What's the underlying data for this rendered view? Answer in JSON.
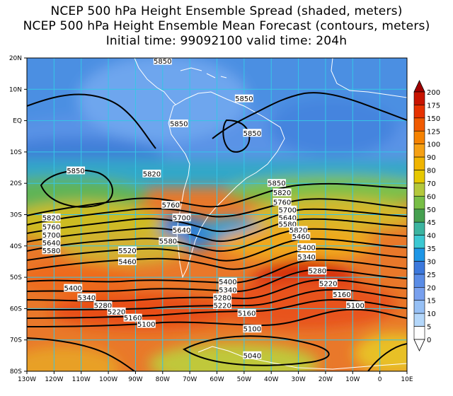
{
  "titles": {
    "line1": "NCEP 500 hPa Height Ensemble Spread (shaded, meters)",
    "line2": "NCEP 500 hPa Height Ensemble Mean Forecast (contours, meters)",
    "line3": "Initial time: 99092100   valid time: 204h"
  },
  "map": {
    "lon_range": [
      -130,
      10
    ],
    "lat_range": [
      -80,
      20
    ],
    "lat_ticks": [
      "20N",
      "10N",
      "EQ",
      "10S",
      "20S",
      "30S",
      "40S",
      "50S",
      "60S",
      "70S",
      "80S"
    ],
    "lon_ticks": [
      "130W",
      "120W",
      "110W",
      "100W",
      "90W",
      "80W",
      "70W",
      "60W",
      "50W",
      "40W",
      "30W",
      "20W",
      "10W",
      "0",
      "10E"
    ],
    "grid": true,
    "contour_labels": [
      {
        "text": "5850",
        "lon": -80,
        "lat": 19
      },
      {
        "text": "5850",
        "lon": -50,
        "lat": 7
      },
      {
        "text": "5850",
        "lon": -74,
        "lat": -1
      },
      {
        "text": "5850",
        "lon": -47,
        "lat": -4
      },
      {
        "text": "5850",
        "lon": -112,
        "lat": -16
      },
      {
        "text": "5820",
        "lon": -84,
        "lat": -17
      },
      {
        "text": "5850",
        "lon": -38,
        "lat": -20
      },
      {
        "text": "5820",
        "lon": -36,
        "lat": -23
      },
      {
        "text": "5760",
        "lon": -36,
        "lat": -26
      },
      {
        "text": "5700",
        "lon": -34,
        "lat": -28.5
      },
      {
        "text": "5640",
        "lon": -34,
        "lat": -31
      },
      {
        "text": "5580",
        "lon": -34,
        "lat": -33
      },
      {
        "text": "5760",
        "lon": -77,
        "lat": -27
      },
      {
        "text": "5700",
        "lon": -73,
        "lat": -31
      },
      {
        "text": "5640",
        "lon": -73,
        "lat": -35
      },
      {
        "text": "5580",
        "lon": -78,
        "lat": -38.5
      },
      {
        "text": "5820",
        "lon": -30,
        "lat": -35
      },
      {
        "text": "5460",
        "lon": -29,
        "lat": -37
      },
      {
        "text": "5400",
        "lon": -27,
        "lat": -40.5
      },
      {
        "text": "5340",
        "lon": -27,
        "lat": -43.5
      },
      {
        "text": "5820",
        "lon": -121,
        "lat": -31
      },
      {
        "text": "5760",
        "lon": -121,
        "lat": -34
      },
      {
        "text": "5700",
        "lon": -121,
        "lat": -36.5
      },
      {
        "text": "5640",
        "lon": -121,
        "lat": -39
      },
      {
        "text": "5580",
        "lon": -121,
        "lat": -41.5
      },
      {
        "text": "5520",
        "lon": -93,
        "lat": -41.5
      },
      {
        "text": "5460",
        "lon": -93,
        "lat": -45
      },
      {
        "text": "5280",
        "lon": -23,
        "lat": -48
      },
      {
        "text": "5220",
        "lon": -19,
        "lat": -52
      },
      {
        "text": "5160",
        "lon": -14,
        "lat": -55.5
      },
      {
        "text": "5100",
        "lon": -9,
        "lat": -59
      },
      {
        "text": "5400",
        "lon": -113,
        "lat": -53.5
      },
      {
        "text": "5340",
        "lon": -108,
        "lat": -56.5
      },
      {
        "text": "5280",
        "lon": -102,
        "lat": -59
      },
      {
        "text": "5220",
        "lon": -97,
        "lat": -61
      },
      {
        "text": "5160",
        "lon": -91,
        "lat": -63
      },
      {
        "text": "5100",
        "lon": -86,
        "lat": -65
      },
      {
        "text": "5400",
        "lon": -56,
        "lat": -51.5
      },
      {
        "text": "5340",
        "lon": -56,
        "lat": -54
      },
      {
        "text": "5280",
        "lon": -58,
        "lat": -56.5
      },
      {
        "text": "5220",
        "lon": -58,
        "lat": -59
      },
      {
        "text": "5160",
        "lon": -49,
        "lat": -61.5
      },
      {
        "text": "5100",
        "lon": -47,
        "lat": -66.5
      },
      {
        "text": "5040",
        "lon": -47,
        "lat": -75
      }
    ]
  },
  "colorbar": {
    "labels": [
      "200",
      "175",
      "150",
      "125",
      "100",
      "90",
      "80",
      "70",
      "60",
      "50",
      "45",
      "40",
      "35",
      "30",
      "25",
      "20",
      "15",
      "10",
      "5",
      "0"
    ],
    "colors": [
      "#a00000",
      "#c81400",
      "#e63200",
      "#f05a00",
      "#f58200",
      "#f5a014",
      "#f0b400",
      "#e6c800",
      "#b4c83c",
      "#78be46",
      "#46a050",
      "#3cb4a0",
      "#3cc8d2",
      "#1e96e6",
      "#3c78dc",
      "#5a8ce6",
      "#78a0ee",
      "#96c0f5",
      "#b4d7fa",
      "#ffffff"
    ]
  }
}
